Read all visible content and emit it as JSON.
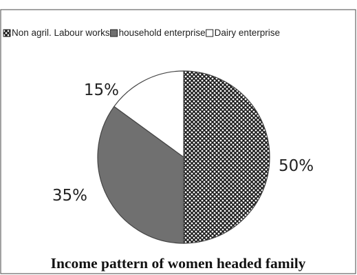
{
  "chart_data": {
    "type": "pie",
    "title": "Income pattern of women headed family",
    "categories": [
      "Non agril. Labour works",
      "household enterprise",
      "Dairy enterprise"
    ],
    "values": [
      50,
      35,
      15
    ],
    "value_labels": [
      "50%",
      "35%",
      "15%"
    ],
    "legend_position": "top",
    "slice_styles": [
      "crosshatch",
      "grey",
      "white"
    ],
    "colors": {
      "grey": "#707070",
      "white": "#ffffff",
      "pattern_ink": "#1a1a1a",
      "border": "#444444"
    }
  }
}
